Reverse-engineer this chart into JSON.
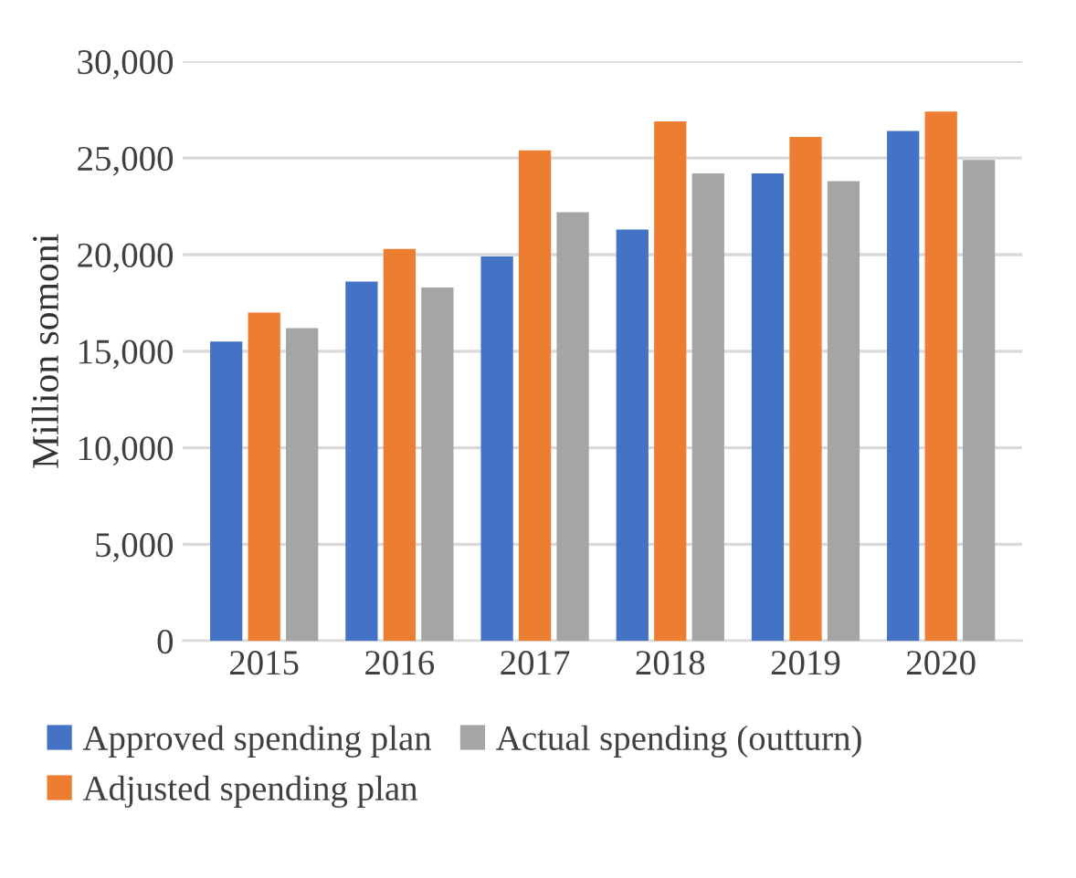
{
  "chart_data": {
    "type": "bar",
    "ylabel": "Million somoni",
    "categories": [
      "2015",
      "2016",
      "2017",
      "2018",
      "2019",
      "2020"
    ],
    "series": [
      {
        "name": "Approved spending plan",
        "color": "#4472c4",
        "values": [
          15500,
          18600,
          19900,
          21300,
          24200,
          26400
        ]
      },
      {
        "name": "Adjusted spending plan",
        "color": "#ed7d31",
        "values": [
          17000,
          20300,
          25400,
          26900,
          26100,
          27400
        ]
      },
      {
        "name": "Actual spending (outturn)",
        "color": "#a5a5a5",
        "values": [
          16200,
          18300,
          22200,
          24200,
          23800,
          24900
        ]
      }
    ],
    "ylim": [
      0,
      30000
    ],
    "yticks": [
      {
        "value": 0,
        "label": "0"
      },
      {
        "value": 5000,
        "label": "5,000"
      },
      {
        "value": 10000,
        "label": "10,000"
      },
      {
        "value": 15000,
        "label": "15,000"
      },
      {
        "value": 20000,
        "label": "20,000"
      },
      {
        "value": 25000,
        "label": "25,000"
      },
      {
        "value": 30000,
        "label": "30,000"
      }
    ],
    "grid": "y",
    "legend": "bottom"
  }
}
